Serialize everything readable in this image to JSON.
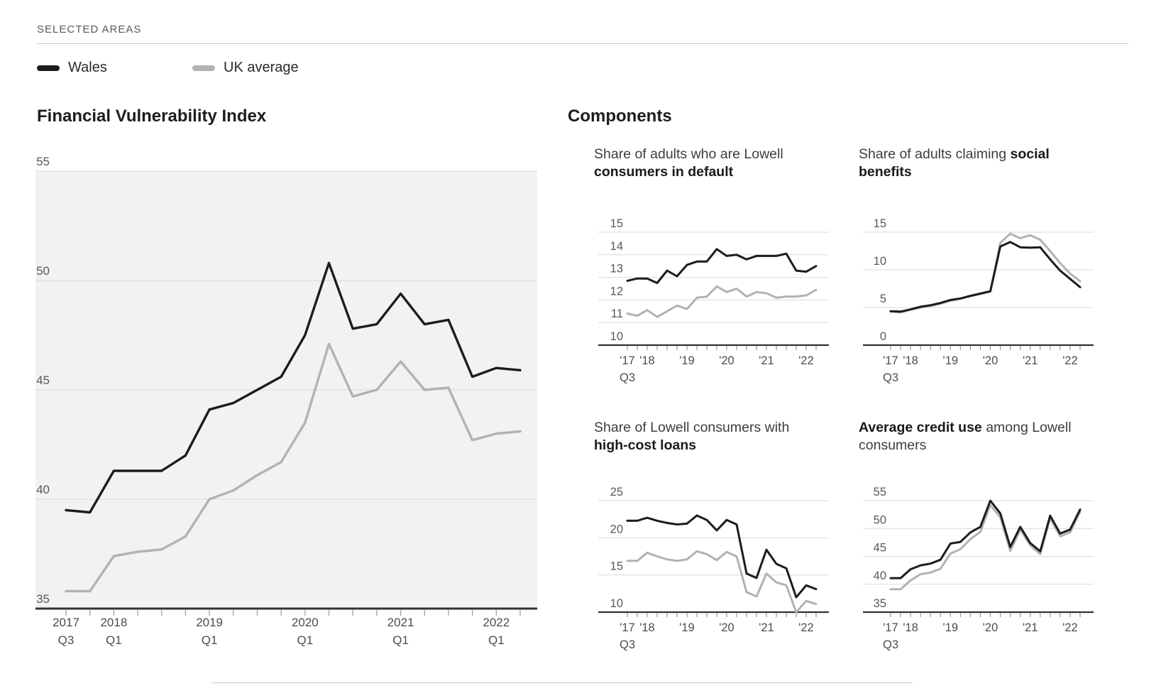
{
  "header": {
    "selected_areas_label": "SELECTED AREAS"
  },
  "legend": {
    "items": [
      {
        "label": "Wales",
        "color": "#1c1c1c"
      },
      {
        "label": "UK average",
        "color": "#b2b2b2"
      }
    ]
  },
  "sections": {
    "components_title": "Components"
  },
  "colors": {
    "wales_line": "#1c1c1c",
    "uk_line": "#b2b2b2",
    "main_plot_bg": "#f2f2f2",
    "gridline": "#d9d9d9",
    "axis": "#333333",
    "tick": "#999999",
    "axis_label": "#595959",
    "x_label": "#4d4d4d",
    "divider": "#c9c9c9"
  },
  "quarters": [
    "2017 Q3",
    "2017 Q4",
    "2018 Q1",
    "2018 Q2",
    "2018 Q3",
    "2018 Q4",
    "2019 Q1",
    "2019 Q2",
    "2019 Q3",
    "2019 Q4",
    "2020 Q1",
    "2020 Q2",
    "2020 Q3",
    "2020 Q4",
    "2021 Q1",
    "2021 Q2",
    "2021 Q3",
    "2021 Q4",
    "2022 Q1",
    "2022 Q2"
  ],
  "main_x_axis": [
    {
      "label": "2017",
      "sub": "Q3",
      "index": 0
    },
    {
      "label": "2018",
      "sub": "Q1",
      "index": 2
    },
    {
      "label": "2019",
      "sub": "Q1",
      "index": 6
    },
    {
      "label": "2020",
      "sub": "Q1",
      "index": 10
    },
    {
      "label": "2021",
      "sub": "Q1",
      "index": 14
    },
    {
      "label": "2022",
      "sub": "Q1",
      "index": 18
    }
  ],
  "small_x_axis": [
    {
      "label": "'17",
      "sub": "Q3",
      "index": 0
    },
    {
      "label": "'18",
      "index": 2
    },
    {
      "label": "'19",
      "index": 6
    },
    {
      "label": "'20",
      "index": 10
    },
    {
      "label": "'21",
      "index": 14
    },
    {
      "label": "'22",
      "index": 18
    }
  ],
  "chart_data": [
    {
      "id": "financial-vulnerability-index",
      "type": "line",
      "title": "Financial Vulnerability Index",
      "ylim": [
        35,
        55
      ],
      "yticks": [
        55,
        50,
        45,
        40,
        35
      ],
      "plot_bg": "#f2f2f2",
      "grid": "on",
      "legend_position": "top-left",
      "x_labels": "main",
      "series": [
        {
          "name": "Wales",
          "color": "#1c1c1c",
          "values": [
            39.5,
            39.4,
            41.3,
            41.3,
            41.3,
            42.0,
            44.1,
            44.4,
            45.0,
            45.6,
            47.5,
            50.8,
            47.8,
            48.0,
            49.4,
            48.0,
            48.2,
            45.6,
            46.0,
            45.9
          ]
        },
        {
          "name": "UK average",
          "color": "#b2b2b2",
          "values": [
            35.8,
            35.8,
            37.4,
            37.6,
            37.7,
            38.3,
            40.0,
            40.4,
            41.1,
            41.7,
            43.5,
            47.1,
            44.7,
            45.0,
            46.3,
            45.0,
            45.1,
            42.7,
            43.0,
            43.1
          ]
        }
      ]
    },
    {
      "id": "consumers-in-default",
      "type": "line",
      "title_parts": [
        {
          "text": "Share of adults who are Lowell ",
          "bold": false
        },
        {
          "text": "consumers in default",
          "bold": true
        }
      ],
      "ylim": [
        10,
        15
      ],
      "yticks": [
        15,
        14,
        13,
        12,
        11,
        10
      ],
      "x_labels": "small",
      "series": [
        {
          "name": "Wales",
          "color": "#1c1c1c",
          "values": [
            12.85,
            12.95,
            12.95,
            12.75,
            13.3,
            13.05,
            13.55,
            13.7,
            13.7,
            14.25,
            13.95,
            14.0,
            13.8,
            13.95,
            13.95,
            13.95,
            14.05,
            13.3,
            13.25,
            13.5
          ]
        },
        {
          "name": "UK average",
          "color": "#b2b2b2",
          "values": [
            11.4,
            11.3,
            11.55,
            11.25,
            11.5,
            11.75,
            11.6,
            12.1,
            12.15,
            12.6,
            12.35,
            12.5,
            12.15,
            12.35,
            12.3,
            12.1,
            12.15,
            12.15,
            12.2,
            12.45
          ]
        }
      ]
    },
    {
      "id": "claiming-social-benefits",
      "type": "line",
      "title_parts": [
        {
          "text": "Share of adults claiming ",
          "bold": false
        },
        {
          "text": "social benefits",
          "bold": true
        }
      ],
      "ylim": [
        0,
        15
      ],
      "yticks": [
        15,
        10,
        5,
        0
      ],
      "x_labels": "small",
      "series": [
        {
          "name": "Wales",
          "color": "#1c1c1c",
          "values": [
            4.5,
            4.45,
            4.75,
            5.1,
            5.3,
            5.6,
            6.0,
            6.2,
            6.55,
            6.85,
            7.15,
            13.1,
            13.7,
            13.0,
            12.95,
            13.0,
            11.4,
            9.9,
            8.8,
            7.7
          ]
        },
        {
          "name": "UK average",
          "color": "#b2b2b2",
          "values": [
            4.45,
            4.35,
            4.7,
            5.0,
            5.2,
            5.5,
            5.9,
            6.15,
            6.5,
            6.8,
            7.1,
            13.6,
            14.8,
            14.2,
            14.6,
            14.0,
            12.5,
            10.9,
            9.5,
            8.5
          ]
        }
      ]
    },
    {
      "id": "high-cost-loans",
      "type": "line",
      "title_parts": [
        {
          "text": "Share of Lowell consumers with ",
          "bold": false
        },
        {
          "text": "high-cost loans",
          "bold": true
        }
      ],
      "ylim": [
        10,
        25
      ],
      "yticks": [
        25,
        20,
        15,
        10
      ],
      "x_labels": "small",
      "series": [
        {
          "name": "Wales",
          "color": "#1c1c1c",
          "values": [
            22.3,
            22.3,
            22.7,
            22.3,
            22.0,
            21.8,
            21.9,
            23.0,
            22.4,
            21.0,
            22.4,
            21.8,
            15.2,
            14.6,
            18.4,
            16.5,
            15.9,
            12.0,
            13.6,
            13.1
          ]
        },
        {
          "name": "UK average",
          "color": "#b2b2b2",
          "values": [
            16.9,
            16.9,
            18.0,
            17.5,
            17.1,
            16.9,
            17.1,
            18.2,
            17.8,
            17.0,
            18.1,
            17.5,
            12.7,
            12.1,
            15.2,
            14.0,
            13.6,
            10.0,
            11.5,
            11.1
          ]
        }
      ]
    },
    {
      "id": "average-credit-use",
      "type": "line",
      "title_parts": [
        {
          "text": "Average credit use",
          "bold": true
        },
        {
          "text": " among Lowell consumers",
          "bold": false
        }
      ],
      "ylim": [
        35,
        55
      ],
      "yticks": [
        55,
        50,
        45,
        40,
        35
      ],
      "x_labels": "small",
      "series": [
        {
          "name": "Wales",
          "color": "#1c1c1c",
          "values": [
            41.1,
            41.1,
            42.7,
            43.4,
            43.7,
            44.4,
            47.3,
            47.6,
            49.3,
            50.3,
            55.0,
            52.7,
            46.7,
            50.3,
            47.4,
            45.9,
            52.3,
            49.1,
            49.8,
            53.4
          ]
        },
        {
          "name": "UK average",
          "color": "#b2b2b2",
          "values": [
            39.1,
            39.1,
            40.7,
            41.8,
            42.1,
            42.8,
            45.5,
            46.3,
            48.1,
            49.4,
            54.2,
            52.0,
            46.0,
            49.8,
            47.0,
            45.4,
            51.8,
            48.6,
            49.3,
            53.0
          ]
        }
      ]
    }
  ]
}
